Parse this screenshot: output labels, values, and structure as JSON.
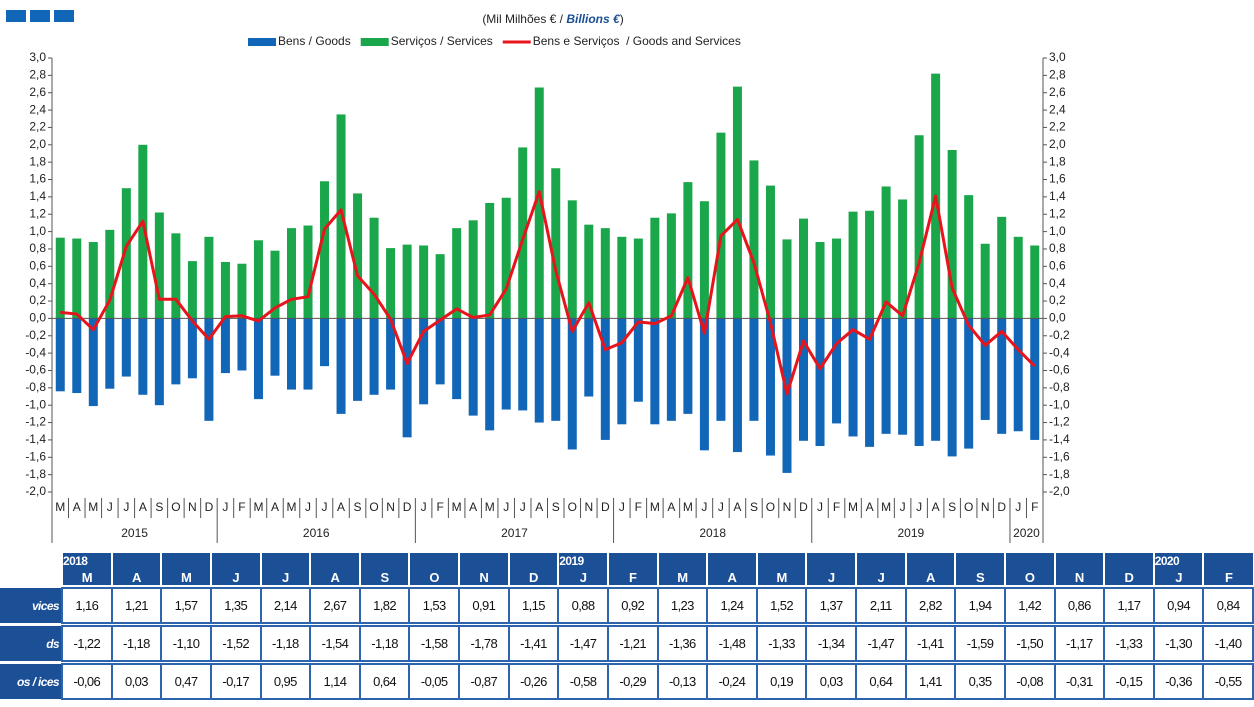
{
  "chart_data": {
    "type": "bar-line",
    "subtitle": [
      "(Mil Milhões € / ",
      "Billions  €",
      ")"
    ],
    "categories": [
      "M",
      "A",
      "M",
      "J",
      "J",
      "A",
      "S",
      "O",
      "N",
      "D",
      "J",
      "F",
      "M",
      "A",
      "M",
      "J",
      "J",
      "A",
      "S",
      "O",
      "N",
      "D",
      "J",
      "F",
      "M",
      "A",
      "M",
      "J",
      "J",
      "A",
      "S",
      "O",
      "N",
      "D",
      "J",
      "F",
      "M",
      "A",
      "M",
      "J",
      "J",
      "A",
      "S",
      "O",
      "N",
      "D",
      "J",
      "F",
      "M",
      "A",
      "M",
      "J",
      "J",
      "A",
      "S",
      "O",
      "N",
      "D",
      "J",
      "F"
    ],
    "x_group_labels": [
      "2015",
      "2016",
      "2017",
      "2018",
      "2019",
      "2020"
    ],
    "series": [
      {
        "name": "Bens / Goods",
        "color": "#1166b8",
        "kind": "bar",
        "values": [
          -0.84,
          -0.86,
          -1.01,
          -0.81,
          -0.67,
          -0.88,
          -1.0,
          -0.76,
          -0.69,
          -1.18,
          -0.63,
          -0.6,
          -0.93,
          -0.66,
          -0.82,
          -0.82,
          -0.55,
          -1.1,
          -0.95,
          -0.88,
          -0.82,
          -1.37,
          -0.99,
          -0.76,
          -0.93,
          -1.12,
          -1.29,
          -1.05,
          -1.06,
          -1.2,
          -1.18,
          -1.51,
          -0.9,
          -1.4,
          -1.22,
          -0.96,
          -1.22,
          -1.18,
          -1.1,
          -1.52,
          -1.18,
          -1.54,
          -1.18,
          -1.58,
          -1.78,
          -1.41,
          -1.47,
          -1.21,
          -1.36,
          -1.48,
          -1.33,
          -1.34,
          -1.47,
          -1.41,
          -1.59,
          -1.5,
          -1.17,
          -1.33,
          -1.3,
          -1.4
        ]
      },
      {
        "name": "Serviços / Services",
        "color": "#1aa64a",
        "kind": "bar",
        "values": [
          0.93,
          0.92,
          0.88,
          1.02,
          1.5,
          2.0,
          1.22,
          0.98,
          0.66,
          0.94,
          0.65,
          0.63,
          0.9,
          0.78,
          1.04,
          1.07,
          1.58,
          2.35,
          1.44,
          1.16,
          0.81,
          0.85,
          0.84,
          0.74,
          1.04,
          1.13,
          1.33,
          1.39,
          1.97,
          2.66,
          1.73,
          1.36,
          1.08,
          1.04,
          0.94,
          0.92,
          1.16,
          1.21,
          1.57,
          1.35,
          2.14,
          2.67,
          1.82,
          1.53,
          0.91,
          1.15,
          0.88,
          0.92,
          1.23,
          1.24,
          1.52,
          1.37,
          2.11,
          2.82,
          1.94,
          1.42,
          0.86,
          1.17,
          0.94,
          0.84
        ]
      },
      {
        "name": "Bens e Serviços  / Goods and Services",
        "color": "#e8141b",
        "kind": "line",
        "values": [
          0.07,
          0.05,
          -0.13,
          0.21,
          0.83,
          1.12,
          0.22,
          0.22,
          -0.03,
          -0.24,
          0.02,
          0.03,
          -0.03,
          0.12,
          0.22,
          0.25,
          1.03,
          1.25,
          0.49,
          0.28,
          -0.01,
          -0.52,
          -0.15,
          -0.02,
          0.11,
          0.01,
          0.04,
          0.34,
          0.91,
          1.46,
          0.55,
          -0.15,
          0.18,
          -0.36,
          -0.28,
          -0.04,
          -0.06,
          0.03,
          0.47,
          -0.17,
          0.95,
          1.14,
          0.64,
          -0.05,
          -0.87,
          -0.26,
          -0.58,
          -0.29,
          -0.13,
          -0.24,
          0.19,
          0.03,
          0.64,
          1.41,
          0.35,
          -0.08,
          -0.31,
          -0.15,
          -0.36,
          -0.55
        ]
      }
    ],
    "ylim": [
      -2,
      3
    ],
    "yticks": [
      {
        "value": 3,
        "label": "3,0"
      },
      {
        "value": 2.8,
        "label": "2,8"
      },
      {
        "value": 2.6,
        "label": "2,6"
      },
      {
        "value": 2.4,
        "label": "2,4"
      },
      {
        "value": 2.2,
        "label": "2,2"
      },
      {
        "value": 2,
        "label": "2,0"
      },
      {
        "value": 1.8,
        "label": "1,8"
      },
      {
        "value": 1.6,
        "label": "1,6"
      },
      {
        "value": 1.4,
        "label": "1,4"
      },
      {
        "value": 1.2,
        "label": "1,2"
      },
      {
        "value": 1,
        "label": "1,0"
      },
      {
        "value": 0.8,
        "label": "0,8"
      },
      {
        "value": 0.6,
        "label": "0,6"
      },
      {
        "value": 0.4,
        "label": "0,4"
      },
      {
        "value": 0.2,
        "label": "0,2"
      },
      {
        "value": 0,
        "label": "0,0"
      },
      {
        "value": -0.2,
        "label": "-0,2"
      },
      {
        "value": -0.4,
        "label": "-0,4"
      },
      {
        "value": -0.6,
        "label": "-0,6"
      },
      {
        "value": -0.8,
        "label": "-0,8"
      },
      {
        "value": -1,
        "label": "-1,0"
      },
      {
        "value": -1.2,
        "label": "-1,2"
      },
      {
        "value": -1.4,
        "label": "-1,4"
      },
      {
        "value": -1.6,
        "label": "-1,6"
      },
      {
        "value": -1.8,
        "label": "-1,8"
      },
      {
        "value": -2,
        "label": "-2,0"
      }
    ]
  },
  "table": {
    "header_years": [
      "2018",
      null,
      null,
      null,
      null,
      null,
      null,
      null,
      null,
      null,
      "2019",
      null,
      null,
      null,
      null,
      null,
      null,
      null,
      null,
      null,
      null,
      null,
      "2020",
      null
    ],
    "header_months": [
      "M",
      "A",
      "M",
      "J",
      "J",
      "A",
      "S",
      "O",
      "N",
      "D",
      "J",
      "F",
      "M",
      "A",
      "M",
      "J",
      "J",
      "A",
      "S",
      "O",
      "N",
      "D",
      "J",
      "F"
    ],
    "rows": [
      {
        "label": "vices",
        "cells": [
          "1,16",
          "1,21",
          "1,57",
          "1,35",
          "2,14",
          "2,67",
          "1,82",
          "1,53",
          "0,91",
          "1,15",
          "0,88",
          "0,92",
          "1,23",
          "1,24",
          "1,52",
          "1,37",
          "2,11",
          "2,82",
          "1,94",
          "1,42",
          "0,86",
          "1,17",
          "0,94",
          "0,84"
        ]
      },
      {
        "label": "ds",
        "cells": [
          "-1,22",
          "-1,18",
          "-1,10",
          "-1,52",
          "-1,18",
          "-1,54",
          "-1,18",
          "-1,58",
          "-1,78",
          "-1,41",
          "-1,47",
          "-1,21",
          "-1,36",
          "-1,48",
          "-1,33",
          "-1,34",
          "-1,47",
          "-1,41",
          "-1,59",
          "-1,50",
          "-1,17",
          "-1,33",
          "-1,30",
          "-1,40"
        ]
      },
      {
        "label": "os / ices",
        "cells": [
          "-0,06",
          "0,03",
          "0,47",
          "-0,17",
          "0,95",
          "1,14",
          "0,64",
          "-0,05",
          "-0,87",
          "-0,26",
          "-0,58",
          "-0,29",
          "-0,13",
          "-0,24",
          "0,19",
          "0,03",
          "0,64",
          "1,41",
          "0,35",
          "-0,08",
          "-0,31",
          "-0,15",
          "-0,36",
          "-0,55"
        ]
      }
    ]
  }
}
